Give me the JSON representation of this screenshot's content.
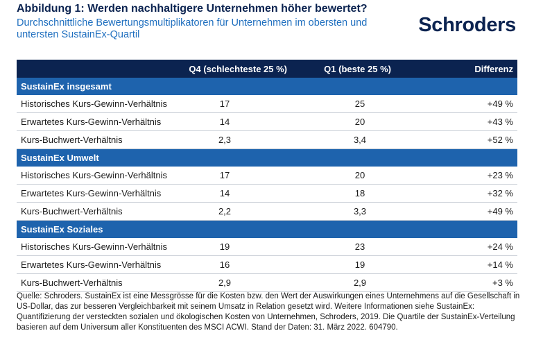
{
  "header": {
    "title": "Abbildung 1: Werden nachhaltigere Unternehmen höher bewertet?",
    "subtitle": "Durchschnittliche Bewertungsmultiplikatoren für Unternehmen im obersten und untersten SustainEx-Quartil",
    "logo_text": "Schroders"
  },
  "table": {
    "columns": [
      "",
      "Q4 (schlechteste 25 %)",
      "Q1 (beste 25 %)",
      "Differenz"
    ],
    "sections": [
      {
        "title": "SustainEx insgesamt",
        "rows": [
          {
            "label": "Historisches Kurs-Gewinn-Verhältnis",
            "q4": "17",
            "q1": "25",
            "diff": "+49 %"
          },
          {
            "label": "Erwartetes Kurs-Gewinn-Verhältnis",
            "q4": "14",
            "q1": "20",
            "diff": "+43 %"
          },
          {
            "label": "Kurs-Buchwert-Verhältnis",
            "q4": "2,3",
            "q1": "3,4",
            "diff": "+52 %"
          }
        ]
      },
      {
        "title": "SustainEx Umwelt",
        "rows": [
          {
            "label": "Historisches Kurs-Gewinn-Verhältnis",
            "q4": "17",
            "q1": "20",
            "diff": "+23 %"
          },
          {
            "label": "Erwartetes Kurs-Gewinn-Verhältnis",
            "q4": "14",
            "q1": "18",
            "diff": "+32 %"
          },
          {
            "label": "Kurs-Buchwert-Verhältnis",
            "q4": "2,2",
            "q1": "3,3",
            "diff": "+49 %"
          }
        ]
      },
      {
        "title": "SustainEx Soziales",
        "rows": [
          {
            "label": "Historisches Kurs-Gewinn-Verhältnis",
            "q4": "19",
            "q1": "23",
            "diff": "+24 %"
          },
          {
            "label": "Erwartetes Kurs-Gewinn-Verhältnis",
            "q4": "16",
            "q1": "19",
            "diff": "+14 %"
          },
          {
            "label": "Kurs-Buchwert-Verhältnis",
            "q4": "2,9",
            "q1": "2,9",
            "diff": "+3 %"
          }
        ]
      }
    ]
  },
  "source": "Quelle: Schroders. SustainEx ist eine Messgrösse für die Kosten bzw. den Wert der Auswirkungen eines Unternehmens auf die Gesellschaft in US-Dollar, das zur besseren Vergleichbarkeit mit seinem Umsatz in Relation gesetzt wird. Weitere Informationen siehe SustainEx: Quantifizierung der versteckten sozialen und ökologischen Kosten von Unternehmen, Schroders, 2019. Die Quartile der SustainEx-Verteilung basieren auf dem Universum aller Konstituenten des MSCI ACWI. Stand der Daten: 31. März 2022. 604790.",
  "colors": {
    "navy": "#0b2350",
    "section_blue": "#1e63ad",
    "subtitle_blue": "#1f6fbf"
  }
}
